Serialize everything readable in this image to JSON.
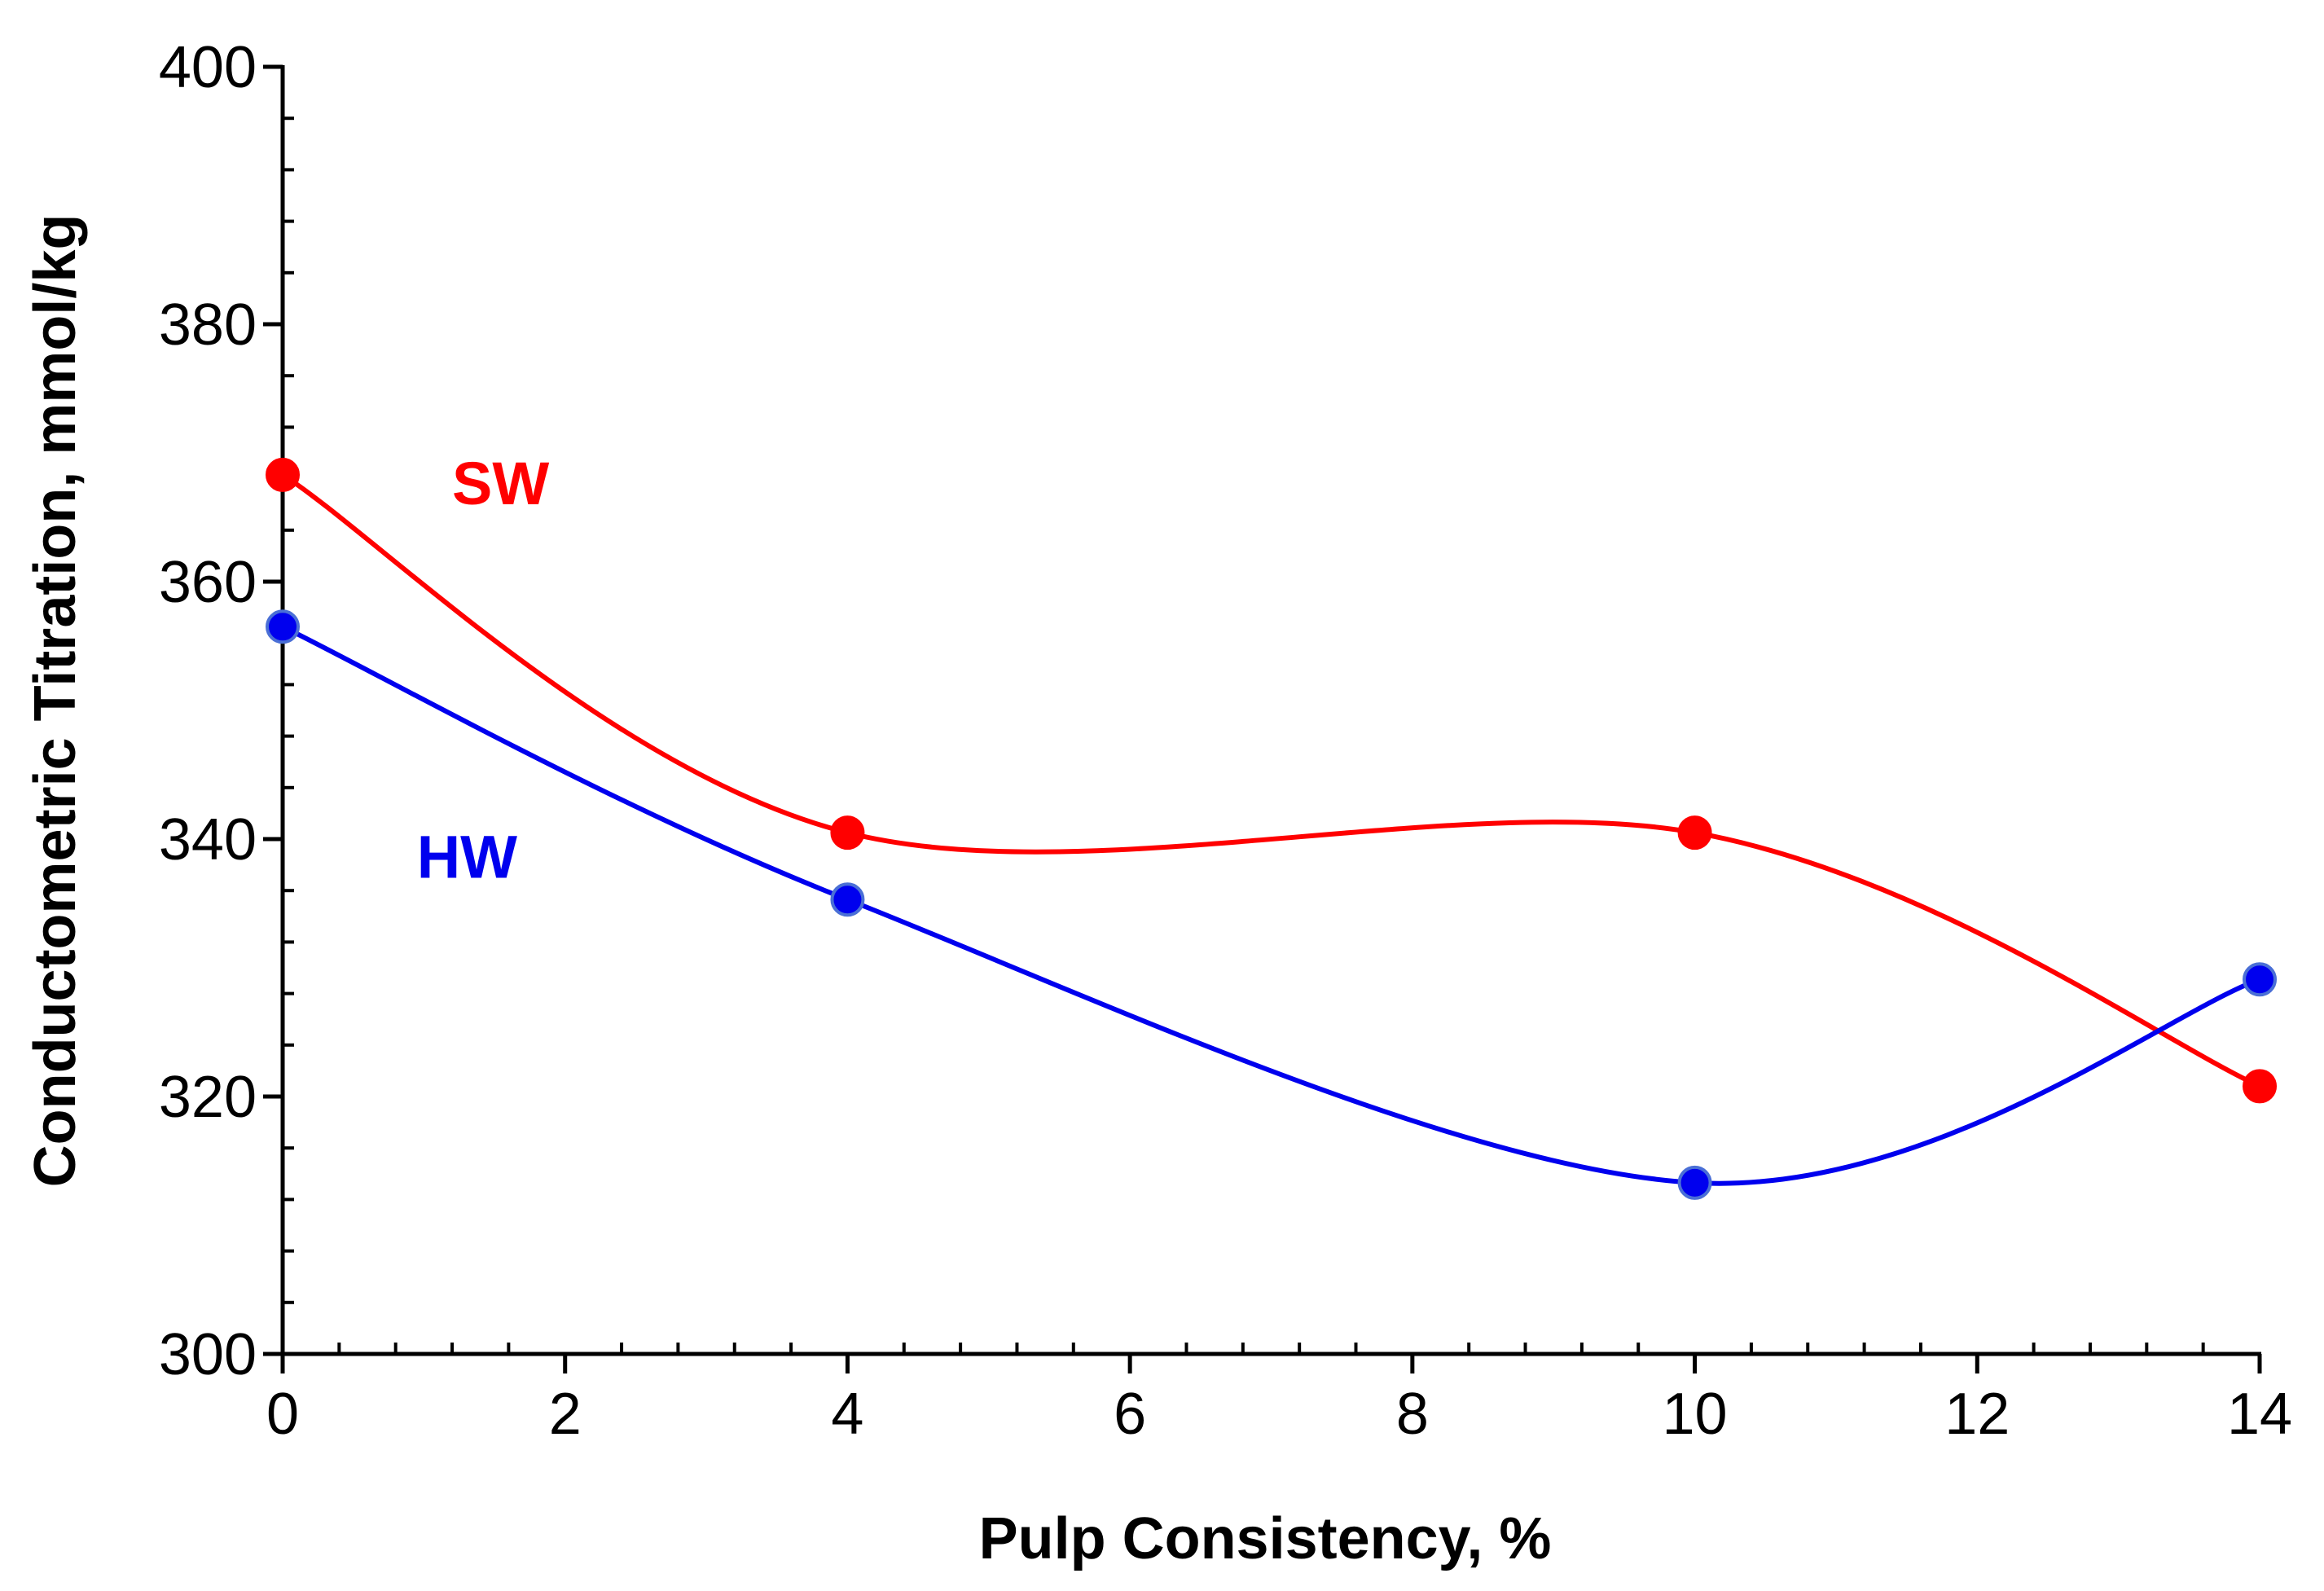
{
  "chart_data": {
    "type": "line",
    "title": "",
    "xlabel": "Pulp Consistency, %",
    "ylabel": "Conductometric Titration, mmol/kg",
    "xlim": [
      0,
      14
    ],
    "ylim": [
      300,
      400
    ],
    "x_major_ticks": [
      0,
      2,
      4,
      6,
      8,
      10,
      12,
      14
    ],
    "x_tick_labels": [
      "0",
      "2",
      "4",
      "6",
      "8",
      "10",
      "12",
      "14"
    ],
    "x_minor_step": 0.4,
    "y_major_ticks": [
      300,
      320,
      340,
      360,
      380,
      400
    ],
    "y_tick_labels": [
      "300",
      "320",
      "340",
      "360",
      "380",
      "400"
    ],
    "y_minor_step": 4,
    "grid": false,
    "smooth": true,
    "series": [
      {
        "name": "SW",
        "color": "#ff0000",
        "x": [
          0,
          4,
          10,
          14
        ],
        "values": [
          368.3,
          340.5,
          340.5,
          320.8
        ]
      },
      {
        "name": "HW",
        "color": "#0000ee",
        "x": [
          0,
          4,
          10,
          14
        ],
        "values": [
          356.5,
          335.3,
          313.3,
          329.1
        ]
      }
    ],
    "annotations": [
      {
        "text": "SW",
        "series": "SW",
        "x": 1.2,
        "y": 366
      },
      {
        "text": "HW",
        "series": "HW",
        "x": 0.95,
        "y": 337
      }
    ]
  }
}
